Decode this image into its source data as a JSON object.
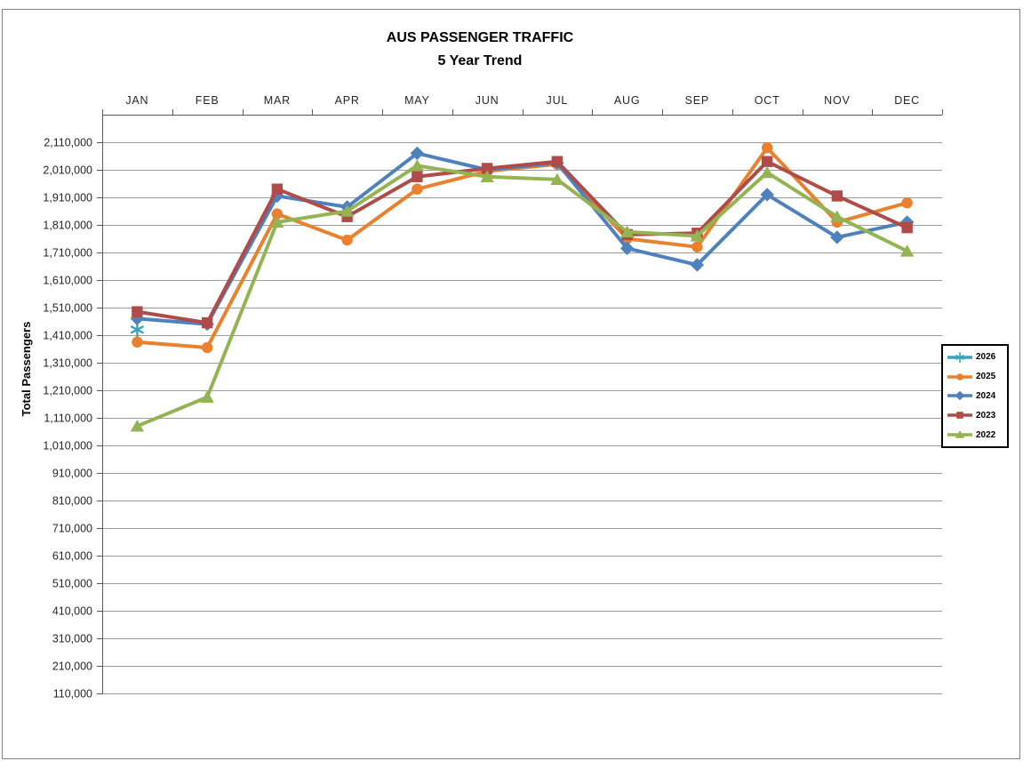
{
  "window": {
    "background": "#FFFFFF",
    "border_color": "#808080"
  },
  "chart_data": {
    "type": "line",
    "title": "AUS PASSENGER TRAFFIC",
    "subtitle": "5 Year Trend",
    "ylabel": "Total Passengers",
    "categories": [
      "JAN",
      "FEB",
      "MAR",
      "APR",
      "MAY",
      "JUN",
      "JUL",
      "AUG",
      "SEP",
      "OCT",
      "NOV",
      "DEC"
    ],
    "x_axis": {
      "position": "top",
      "tick_color": "#595959"
    },
    "y_axis": {
      "min": 110000,
      "max": 2210000,
      "major_unit": 100000,
      "first_label": 110000,
      "last_label": 2110000,
      "label_format": "thousands-comma",
      "gridlines": true,
      "gridline_color": "#9C9C9C",
      "axis_color": "#595959"
    },
    "legend_position": "right",
    "series": [
      {
        "name": "2026",
        "color": "#3BA2B9",
        "marker": "asterisk",
        "values": [
          1430000,
          null,
          null,
          null,
          null,
          null,
          null,
          null,
          null,
          null,
          null,
          null
        ]
      },
      {
        "name": "2025",
        "color": "#E9812F",
        "marker": "circle",
        "values": [
          1385000,
          1365000,
          1850000,
          1755000,
          1940000,
          2005000,
          2030000,
          1760000,
          1730000,
          2090000,
          1820000,
          1890000
        ]
      },
      {
        "name": "2024",
        "color": "#4F81BD",
        "marker": "diamond",
        "values": [
          1470000,
          1450000,
          1915000,
          1875000,
          2070000,
          2010000,
          2035000,
          1725000,
          1665000,
          1920000,
          1765000,
          1820000
        ]
      },
      {
        "name": "2023",
        "color": "#AF4B48",
        "marker": "square",
        "values": [
          1495000,
          1455000,
          1940000,
          1840000,
          1985000,
          2015000,
          2040000,
          1775000,
          1780000,
          2040000,
          1915000,
          1800000
        ]
      },
      {
        "name": "2022",
        "color": "#94B454",
        "marker": "triangle",
        "values": [
          1080000,
          1185000,
          1820000,
          1860000,
          2025000,
          1985000,
          1975000,
          1785000,
          1770000,
          2000000,
          1840000,
          1715000
        ]
      }
    ]
  }
}
